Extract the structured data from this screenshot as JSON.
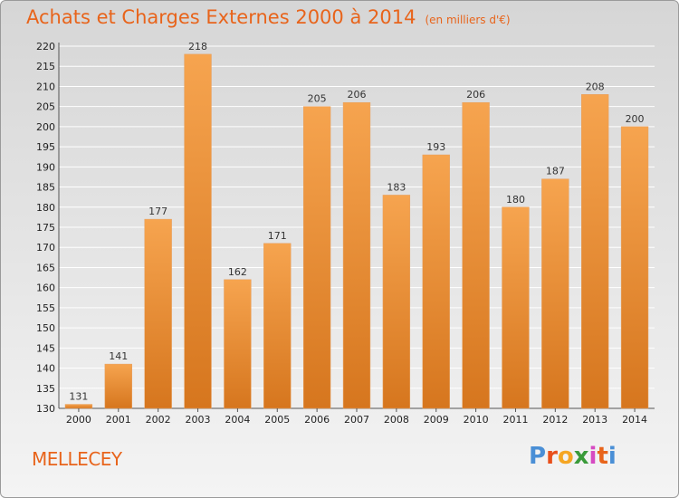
{
  "title": "Achats et Charges Externes 2000 à 2014",
  "subtitle": "(en milliers d'€)",
  "town": "MELLECEY",
  "logo": {
    "letters": [
      "P",
      "r",
      "o",
      "x",
      "i",
      "t",
      "i"
    ],
    "colors": [
      "#4a8fd6",
      "#e84f1b",
      "#f5a623",
      "#3a9b3a",
      "#d64ac2",
      "#e8641b",
      "#4a8fd6"
    ]
  },
  "colors": {
    "accent": "#e8641b",
    "bar_top": "#f6a44f",
    "bar_bottom": "#d6761e",
    "grid": "#ffffff"
  },
  "chart_data": {
    "type": "bar",
    "categories": [
      "2000",
      "2001",
      "2002",
      "2003",
      "2004",
      "2005",
      "2006",
      "2007",
      "2008",
      "2009",
      "2010",
      "2011",
      "2012",
      "2013",
      "2014"
    ],
    "values": [
      131,
      141,
      177,
      218,
      162,
      171,
      205,
      206,
      183,
      193,
      206,
      180,
      187,
      208,
      200
    ],
    "yticks": [
      130,
      135,
      140,
      145,
      150,
      155,
      160,
      165,
      170,
      175,
      180,
      185,
      190,
      195,
      200,
      205,
      210,
      215,
      220
    ],
    "ylim": [
      130,
      220
    ],
    "grid": true,
    "xlabel": "",
    "ylabel": ""
  }
}
